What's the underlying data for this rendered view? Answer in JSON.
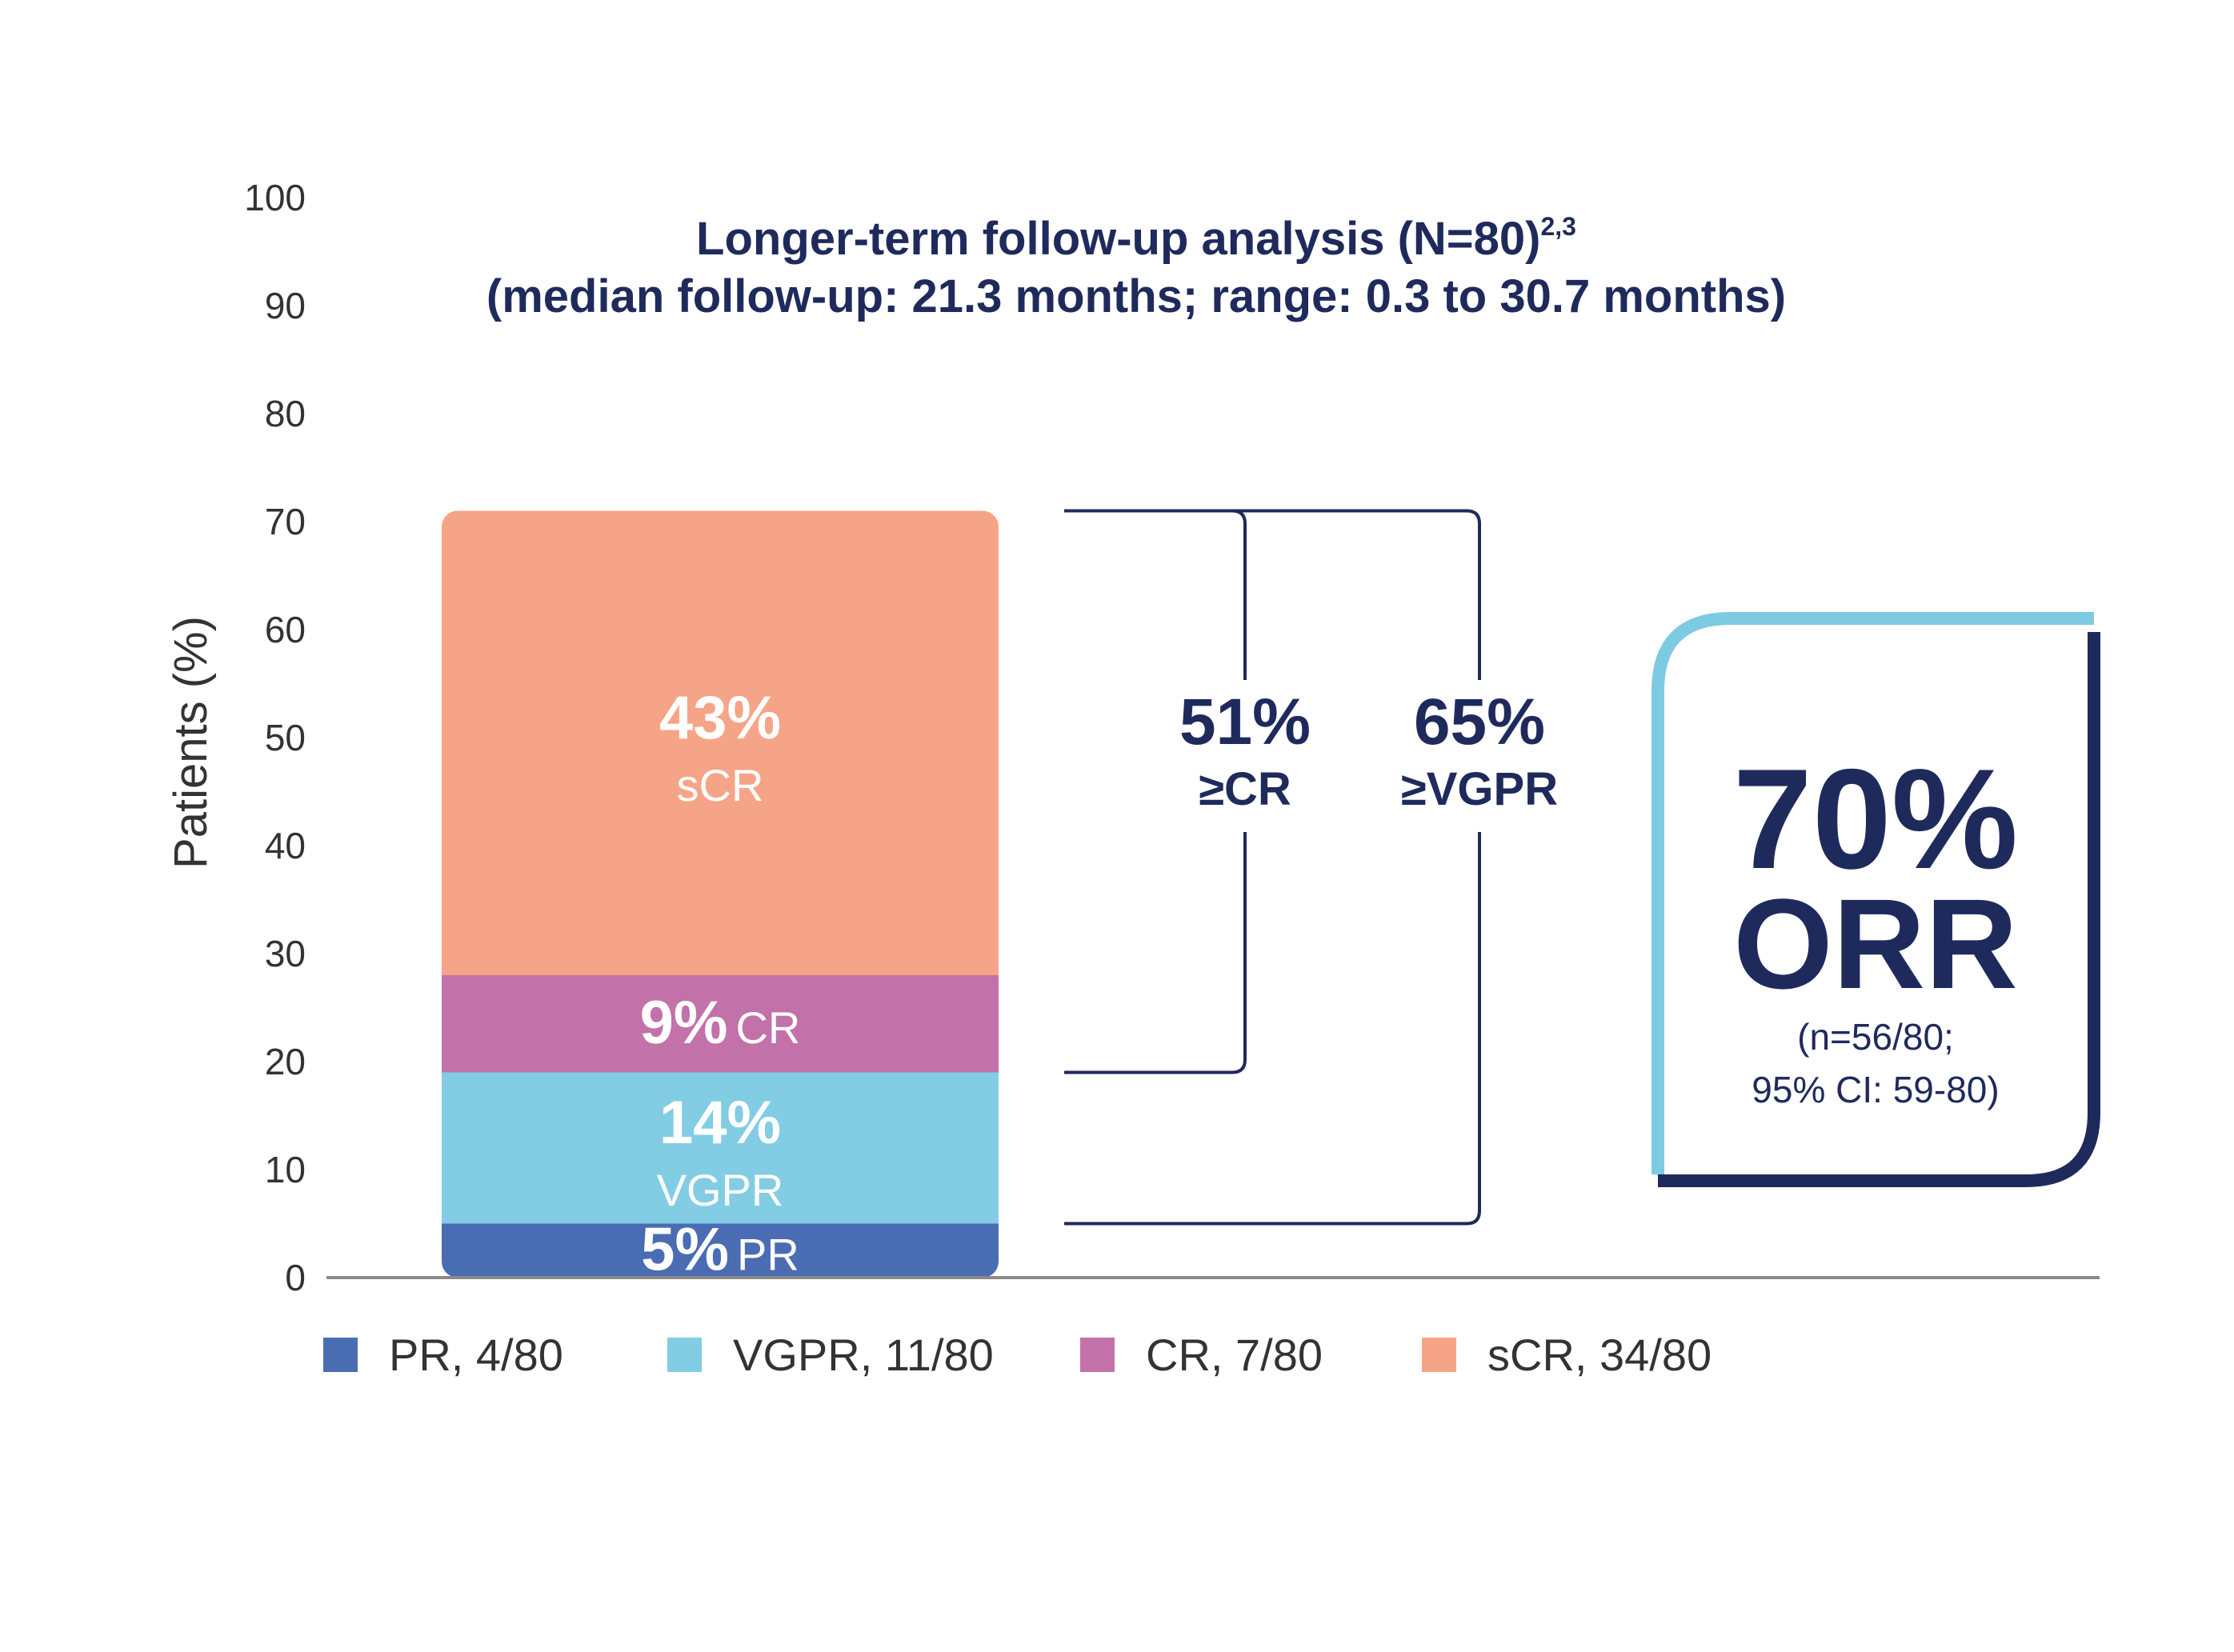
{
  "chart_data": {
    "type": "bar",
    "title_line1": "Longer-term follow-up analysis (N=80)",
    "title_sup": "2,3",
    "title_line2": "(median follow-up: 21.3 months; range: 0.3 to 30.7 months)",
    "ylabel": "Patients (%)",
    "ylim": [
      0,
      100
    ],
    "yticks": [
      0,
      10,
      20,
      30,
      40,
      50,
      60,
      70,
      80,
      90,
      100
    ],
    "stacked": true,
    "series": [
      {
        "name": "PR",
        "value": 5,
        "pct_label": "5%",
        "name_label": "PR",
        "legend": "PR, 4/80",
        "color": "#4a6cb3",
        "label_inline": true
      },
      {
        "name": "VGPR",
        "value": 14,
        "pct_label": "14%",
        "name_label": "VGPR",
        "legend": "VGPR, 11/80",
        "color": "#82cde4",
        "label_inline": false
      },
      {
        "name": "CR",
        "value": 9,
        "pct_label": "9%",
        "name_label": "CR",
        "legend": "CR, 7/80",
        "color": "#c371a9",
        "label_inline": true
      },
      {
        "name": "sCR",
        "value": 43,
        "pct_label": "43%",
        "name_label": "sCR",
        "legend": "sCR, 34/80",
        "color": "#f6a487",
        "label_inline": false
      }
    ],
    "brackets": [
      {
        "value": "51%",
        "label": "≥CR",
        "from": 19,
        "to": 71
      },
      {
        "value": "65%",
        "label": "≥VGPR",
        "from": 5,
        "to": 71
      }
    ],
    "callout": {
      "value": "70%",
      "label": "ORR",
      "detail_line1": "(n=56/80;",
      "detail_line2": "95% CI: 59-80)"
    },
    "grid": false,
    "legend_position": "bottom",
    "colors": {
      "ink": "#1f2a5c",
      "tick": "#333333",
      "callout_outer": "#7dcae3"
    }
  }
}
